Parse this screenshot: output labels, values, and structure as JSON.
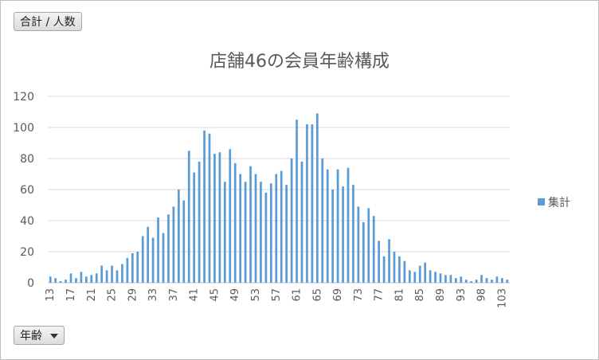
{
  "field_buttons": {
    "values": "合計 / 人数",
    "axis": "年齢"
  },
  "chart_data": {
    "type": "bar",
    "title": "店舗46の会員年齢構成",
    "xlabel": "",
    "ylabel": "",
    "ylim": [
      0,
      120
    ],
    "yticks": [
      0,
      20,
      40,
      60,
      80,
      100,
      120
    ],
    "grid": true,
    "legend_position": "right",
    "color": "#5b9bd5",
    "categories": [
      "13",
      "14",
      "15",
      "16",
      "17",
      "18",
      "19",
      "20",
      "21",
      "22",
      "23",
      "24",
      "25",
      "26",
      "27",
      "28",
      "29",
      "30",
      "31",
      "32",
      "33",
      "34",
      "35",
      "36",
      "37",
      "38",
      "39",
      "40",
      "41",
      "42",
      "43",
      "44",
      "45",
      "46",
      "47",
      "48",
      "49",
      "50",
      "51",
      "52",
      "53",
      "54",
      "55",
      "56",
      "57",
      "58",
      "59",
      "60",
      "61",
      "62",
      "63",
      "64",
      "65",
      "66",
      "67",
      "68",
      "69",
      "70",
      "71",
      "72",
      "73",
      "74",
      "75",
      "76",
      "77",
      "78",
      "79",
      "80",
      "81",
      "82",
      "83",
      "84",
      "85",
      "86",
      "87",
      "88",
      "89",
      "90",
      "91",
      "92",
      "93",
      "94",
      "95",
      "96",
      "98",
      "99",
      "100",
      "101",
      "103",
      "104"
    ],
    "series": [
      {
        "name": "集計",
        "values": [
          4,
          3,
          1,
          2,
          6,
          3,
          7,
          4,
          5,
          6,
          11,
          8,
          11,
          8,
          12,
          16,
          19,
          20,
          30,
          36,
          29,
          42,
          32,
          44,
          49,
          60,
          53,
          85,
          71,
          78,
          98,
          96,
          83,
          84,
          65,
          86,
          77,
          70,
          65,
          75,
          70,
          65,
          58,
          64,
          70,
          72,
          63,
          80,
          105,
          78,
          102,
          102,
          109,
          80,
          73,
          60,
          73,
          62,
          74,
          63,
          49,
          39,
          48,
          43,
          27,
          17,
          28,
          20,
          17,
          14,
          8,
          7,
          11,
          13,
          8,
          7,
          6,
          5,
          5,
          3,
          4,
          2,
          1,
          2,
          5,
          3,
          2,
          4,
          3,
          2
        ]
      }
    ],
    "xtick_labels": [
      "13",
      "17",
      "21",
      "25",
      "29",
      "33",
      "37",
      "41",
      "45",
      "49",
      "53",
      "57",
      "61",
      "65",
      "69",
      "73",
      "77",
      "81",
      "85",
      "89",
      "93",
      "98",
      "103"
    ]
  }
}
